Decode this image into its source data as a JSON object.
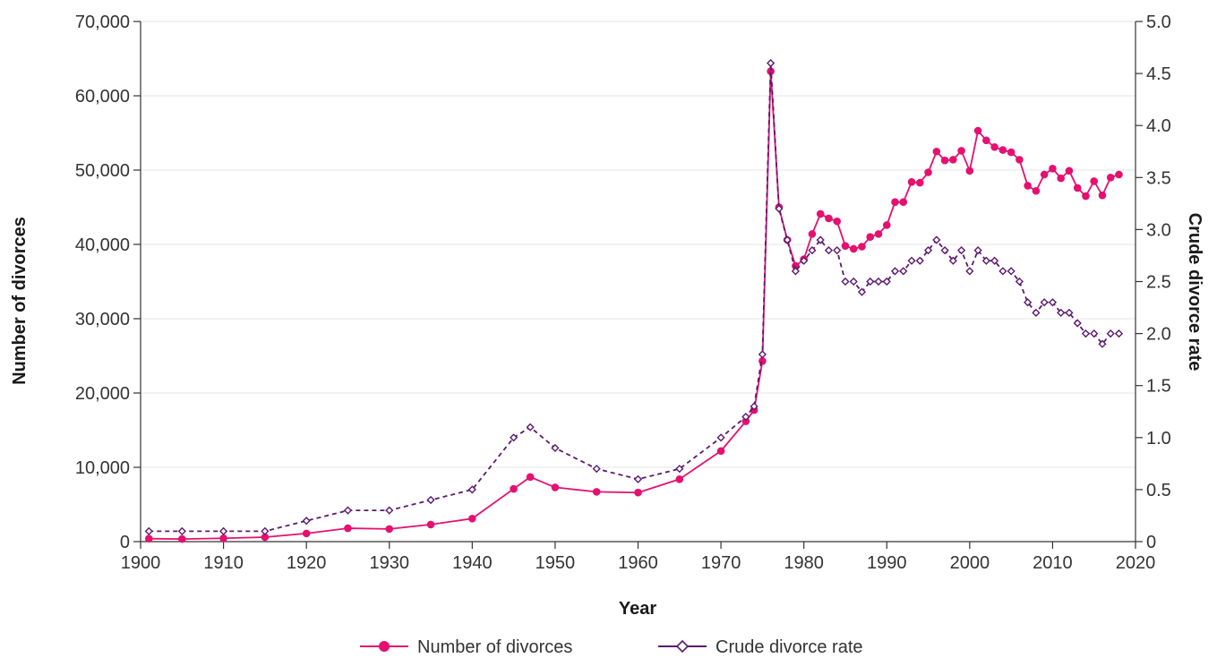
{
  "chart_data": {
    "type": "line",
    "title": "",
    "xlabel": "Year",
    "ylabel": "Number of divorces",
    "y2label": "Crude divorce rate",
    "xlim": [
      1900,
      2020
    ],
    "ylim": [
      0,
      70000
    ],
    "y2lim": [
      0,
      5.0
    ],
    "xticks": [
      1900,
      1910,
      1920,
      1930,
      1940,
      1950,
      1960,
      1970,
      1980,
      1990,
      2000,
      2010,
      2020
    ],
    "yticks": [
      0,
      10000,
      20000,
      30000,
      40000,
      50000,
      60000,
      70000
    ],
    "y2ticks": [
      0,
      0.5,
      1.0,
      1.5,
      2.0,
      2.5,
      3.0,
      3.5,
      4.0,
      4.5,
      5.0
    ],
    "grid": "horizontal",
    "legend_position": "bottom",
    "series": [
      {
        "name": "Number of divorces",
        "axis": "left",
        "color": "#e5106f",
        "marker": "filled-circle",
        "line_style": "solid",
        "x": [
          1901,
          1905,
          1910,
          1915,
          1920,
          1925,
          1930,
          1935,
          1940,
          1945,
          1947,
          1950,
          1955,
          1960,
          1965,
          1970,
          1973,
          1974,
          1975,
          1976,
          1977,
          1978,
          1979,
          1980,
          1981,
          1982,
          1983,
          1984,
          1985,
          1986,
          1987,
          1988,
          1989,
          1990,
          1991,
          1992,
          1993,
          1994,
          1995,
          1996,
          1997,
          1998,
          1999,
          2000,
          2001,
          2002,
          2003,
          2004,
          2005,
          2006,
          2007,
          2008,
          2009,
          2010,
          2011,
          2012,
          2013,
          2014,
          2015,
          2016,
          2017,
          2018
        ],
        "values": [
          400,
          350,
          450,
          600,
          1100,
          1800,
          1700,
          2300,
          3100,
          7100,
          8700,
          7300,
          6700,
          6600,
          8400,
          12200,
          16200,
          17700,
          24300,
          63300,
          45000,
          40600,
          37100,
          38000,
          41400,
          44100,
          43500,
          43100,
          39800,
          39400,
          39700,
          41000,
          41400,
          42600,
          45700,
          45700,
          48400,
          48300,
          49700,
          52500,
          51300,
          51400,
          52600,
          49900,
          55300,
          54000,
          53100,
          52700,
          52400,
          51400,
          47900,
          47200,
          49400,
          50200,
          48900,
          49900,
          47600,
          46500,
          48500,
          46600,
          49000,
          49400
        ]
      },
      {
        "name": "Crude divorce rate",
        "axis": "right",
        "color": "#5b1a6e",
        "marker": "open-diamond",
        "line_style": "dashed",
        "x": [
          1901,
          1905,
          1910,
          1915,
          1920,
          1925,
          1930,
          1935,
          1940,
          1945,
          1947,
          1950,
          1955,
          1960,
          1965,
          1970,
          1973,
          1974,
          1975,
          1976,
          1977,
          1978,
          1979,
          1980,
          1981,
          1982,
          1983,
          1984,
          1985,
          1986,
          1987,
          1988,
          1989,
          1990,
          1991,
          1992,
          1993,
          1994,
          1995,
          1996,
          1997,
          1998,
          1999,
          2000,
          2001,
          2002,
          2003,
          2004,
          2005,
          2006,
          2007,
          2008,
          2009,
          2010,
          2011,
          2012,
          2013,
          2014,
          2015,
          2016,
          2017,
          2018
        ],
        "values": [
          0.1,
          0.1,
          0.1,
          0.1,
          0.2,
          0.3,
          0.3,
          0.4,
          0.5,
          1.0,
          1.1,
          0.9,
          0.7,
          0.6,
          0.7,
          1.0,
          1.2,
          1.3,
          1.8,
          4.6,
          3.2,
          2.9,
          2.6,
          2.7,
          2.8,
          2.9,
          2.8,
          2.8,
          2.5,
          2.5,
          2.4,
          2.5,
          2.5,
          2.5,
          2.6,
          2.6,
          2.7,
          2.7,
          2.8,
          2.9,
          2.8,
          2.7,
          2.8,
          2.6,
          2.8,
          2.7,
          2.7,
          2.6,
          2.6,
          2.5,
          2.3,
          2.2,
          2.3,
          2.3,
          2.2,
          2.2,
          2.1,
          2.0,
          2.0,
          1.9,
          2.0,
          2.0
        ]
      }
    ]
  }
}
